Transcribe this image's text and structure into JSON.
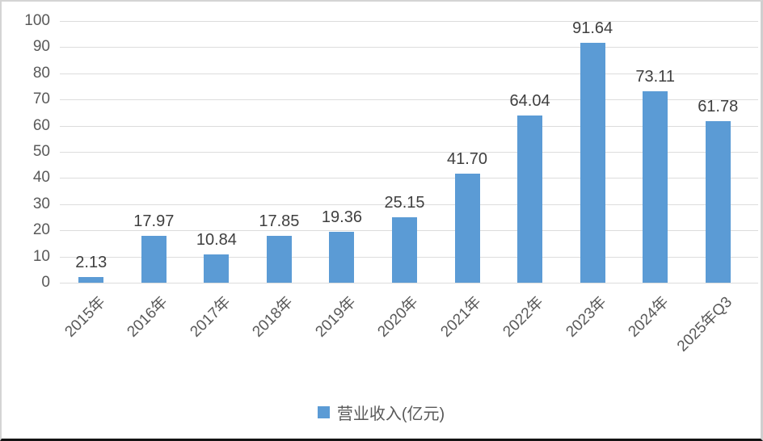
{
  "chart_data": {
    "type": "bar",
    "title": "",
    "xlabel": "",
    "ylabel": "",
    "categories": [
      "2015年",
      "2016年",
      "2017年",
      "2018年",
      "2019年",
      "2020年",
      "2021年",
      "2022年",
      "2023年",
      "2024年",
      "2025年Q3"
    ],
    "values": [
      2.13,
      17.97,
      10.84,
      17.85,
      19.36,
      25.15,
      41.7,
      64.04,
      91.64,
      73.11,
      61.78
    ],
    "value_labels": [
      "2.13",
      "17.97",
      "10.84",
      "17.85",
      "19.36",
      "25.15",
      "41.70",
      "64.04",
      "91.64",
      "73.11",
      "61.78"
    ],
    "ylim": [
      0,
      100
    ],
    "yticks": [
      0,
      10,
      20,
      30,
      40,
      50,
      60,
      70,
      80,
      90,
      100
    ],
    "grid": true,
    "legend": "营业收入(亿元)",
    "legend_position": "bottom-center",
    "colors": {
      "bar": "#5B9BD5",
      "gridline": "#dcdcdc",
      "axis_text": "#595959",
      "data_label_text": "#3f3f3f",
      "frame_border": "#d4d4d4",
      "bottom_rule": "#141414"
    }
  }
}
